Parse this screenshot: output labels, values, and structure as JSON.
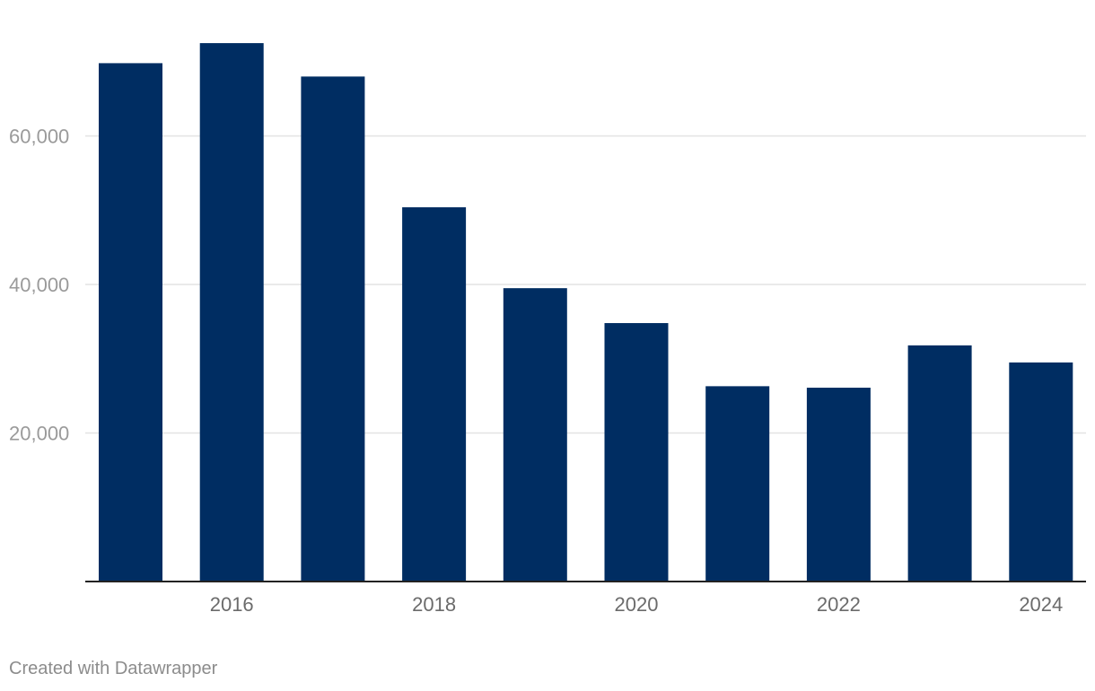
{
  "chart_data": {
    "type": "bar",
    "x": [
      2015,
      2016,
      2017,
      2018,
      2019,
      2020,
      2021,
      2022,
      2023,
      2024
    ],
    "values": [
      69800,
      72500,
      68000,
      50400,
      39500,
      34800,
      26300,
      26100,
      31800,
      29500
    ],
    "x_tick_labels": [
      "2016",
      "2018",
      "2020",
      "2022",
      "2024"
    ],
    "y_ticks": [
      20000,
      40000,
      60000
    ],
    "y_tick_labels": [
      "20,000",
      "40,000",
      "60,000"
    ],
    "ylim": [
      0,
      78000
    ],
    "grid": true,
    "bar_color": "#002d62",
    "title": "",
    "xlabel": "",
    "ylabel": ""
  },
  "credit": "Created with Datawrapper"
}
